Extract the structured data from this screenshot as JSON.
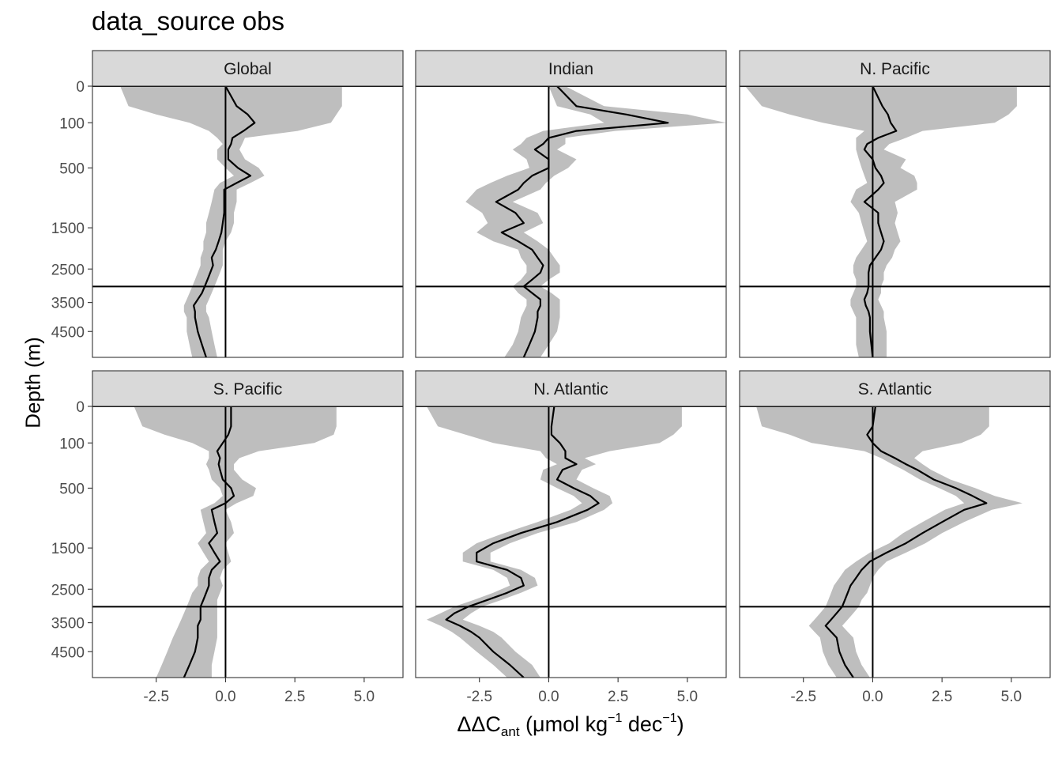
{
  "title": "data_source obs",
  "axis": {
    "ylabel": "Depth (m)",
    "xlabel_delta": "ΔΔC",
    "xlabel_sub": "ant",
    "xlabel_unit_pre": " (μmol kg",
    "xlabel_sup1": "−1",
    "xlabel_unit_mid": " dec",
    "xlabel_sup2": "−1",
    "xlabel_unit_post": ")"
  },
  "chart_data": {
    "type": "line",
    "facets": [
      "Global",
      "Indian",
      "N. Pacific",
      "S. Pacific",
      "N. Atlantic",
      "S. Atlantic"
    ],
    "x_ticks": [
      -2.5,
      0.0,
      2.5,
      5.0
    ],
    "x_tick_labels": [
      "-2.5",
      "0.0",
      "2.5",
      "5.0"
    ],
    "xlim": [
      -4.8,
      6.4
    ],
    "y_ticks": [
      0,
      100,
      500,
      1500,
      2500,
      3500,
      4500
    ],
    "y_tick_labels": [
      "0",
      "100",
      "500",
      "1500",
      "2500",
      "3500",
      "4500"
    ],
    "y_scale": "reverse_sqrt",
    "ylim": [
      0,
      5500
    ],
    "reference_lines": {
      "vertical_x": 0,
      "horizontal_depth": 3000
    },
    "band_color": "#bebebe",
    "line_color": "#000000",
    "panels": [
      {
        "name": "Global",
        "depth": [
          0,
          30,
          60,
          100,
          150,
          200,
          250,
          300,
          400,
          500,
          600,
          700,
          800,
          1000,
          1200,
          1400,
          1600,
          1800,
          2000,
          2200,
          2400,
          2600,
          2800,
          3000,
          3200,
          3400,
          3600,
          3800,
          4000,
          4500,
          5000,
          5500
        ],
        "mean": [
          0.0,
          0.4,
          0.8,
          1.05,
          0.65,
          0.25,
          0.2,
          0.1,
          0.1,
          0.45,
          0.9,
          0.4,
          -0.05,
          -0.05,
          -0.05,
          -0.1,
          -0.15,
          -0.25,
          -0.35,
          -0.5,
          -0.45,
          -0.55,
          -0.65,
          -0.75,
          -0.85,
          -1.0,
          -1.15,
          -1.1,
          -1.1,
          -1.0,
          -0.85,
          -0.7
        ],
        "band": [
          [
            -3.8,
            4.2
          ],
          [
            -3.5,
            4.2
          ],
          [
            -2.5,
            4.0
          ],
          [
            -1.3,
            3.8
          ],
          [
            -0.6,
            2.6
          ],
          [
            -0.3,
            0.7
          ],
          [
            -0.1,
            0.6
          ],
          [
            -0.3,
            0.5
          ],
          [
            -0.3,
            0.7
          ],
          [
            0.0,
            1.2
          ],
          [
            0.3,
            1.4
          ],
          [
            -0.2,
            0.9
          ],
          [
            -0.4,
            0.4
          ],
          [
            -0.5,
            0.4
          ],
          [
            -0.6,
            0.3
          ],
          [
            -0.7,
            0.3
          ],
          [
            -0.7,
            0.2
          ],
          [
            -0.8,
            0.0
          ],
          [
            -0.8,
            -0.1
          ],
          [
            -0.9,
            -0.1
          ],
          [
            -0.9,
            -0.1
          ],
          [
            -1.0,
            -0.2
          ],
          [
            -1.1,
            -0.3
          ],
          [
            -1.2,
            -0.4
          ],
          [
            -1.3,
            -0.5
          ],
          [
            -1.4,
            -0.6
          ],
          [
            -1.5,
            -0.7
          ],
          [
            -1.5,
            -0.7
          ],
          [
            -1.4,
            -0.6
          ],
          [
            -1.4,
            -0.5
          ],
          [
            -1.3,
            -0.4
          ],
          [
            -1.2,
            -0.3
          ]
        ]
      },
      {
        "name": "Indian",
        "depth": [
          0,
          30,
          60,
          100,
          150,
          200,
          250,
          300,
          400,
          500,
          600,
          700,
          800,
          1000,
          1200,
          1400,
          1600,
          1800,
          2000,
          2200,
          2400,
          2600,
          2800,
          3000,
          3200,
          3400,
          3600,
          3800,
          4000,
          4500,
          5000,
          5500
        ],
        "mean": [
          0.3,
          1.0,
          2.8,
          4.3,
          1.0,
          0.0,
          -0.2,
          -0.5,
          0.0,
          0.0,
          -0.6,
          -0.9,
          -1.1,
          -1.9,
          -1.2,
          -0.9,
          -1.7,
          -1.1,
          -0.6,
          -0.4,
          -0.2,
          -0.3,
          -0.6,
          -0.9,
          -0.6,
          -0.3,
          -0.3,
          -0.4,
          -0.4,
          -0.5,
          -0.7,
          -0.9
        ],
        "band": [
          [
            0.0,
            0.6
          ],
          [
            0.3,
            2.0
          ],
          [
            1.5,
            5.0
          ],
          [
            2.0,
            6.4
          ],
          [
            -0.2,
            2.4
          ],
          [
            -0.8,
            0.6
          ],
          [
            -1.0,
            0.6
          ],
          [
            -1.3,
            0.3
          ],
          [
            -0.8,
            1.0
          ],
          [
            -0.7,
            0.7
          ],
          [
            -1.5,
            0.2
          ],
          [
            -2.1,
            -0.1
          ],
          [
            -2.6,
            -0.3
          ],
          [
            -3.0,
            -1.3
          ],
          [
            -2.4,
            -0.4
          ],
          [
            -2.2,
            -0.2
          ],
          [
            -2.6,
            -0.9
          ],
          [
            -2.0,
            -0.4
          ],
          [
            -1.1,
            0.0
          ],
          [
            -1.0,
            0.2
          ],
          [
            -0.8,
            0.4
          ],
          [
            -0.8,
            0.4
          ],
          [
            -1.0,
            0.0
          ],
          [
            -1.3,
            -0.3
          ],
          [
            -1.1,
            0.1
          ],
          [
            -0.8,
            0.4
          ],
          [
            -0.8,
            0.4
          ],
          [
            -0.9,
            0.4
          ],
          [
            -1.0,
            0.4
          ],
          [
            -1.1,
            0.3
          ],
          [
            -1.3,
            0.0
          ],
          [
            -1.6,
            -0.3
          ]
        ]
      },
      {
        "name": "N. Pacific",
        "depth": [
          0,
          30,
          60,
          100,
          150,
          200,
          250,
          300,
          400,
          500,
          600,
          700,
          800,
          1000,
          1200,
          1400,
          1600,
          1800,
          2000,
          2200,
          2400,
          2600,
          2800,
          3000,
          3200,
          3400,
          3600,
          3800,
          4000,
          4500,
          5000,
          5500
        ],
        "mean": [
          0.0,
          0.35,
          0.55,
          0.65,
          0.85,
          0.2,
          -0.2,
          -0.3,
          0.0,
          0.1,
          0.3,
          0.4,
          0.2,
          -0.3,
          0.2,
          0.2,
          0.3,
          0.4,
          0.3,
          0.1,
          -0.1,
          -0.15,
          -0.15,
          -0.15,
          -0.2,
          -0.3,
          -0.25,
          -0.15,
          -0.1,
          -0.1,
          -0.05,
          0.0
        ],
        "band": [
          [
            -4.6,
            5.2
          ],
          [
            -4.0,
            5.2
          ],
          [
            -3.0,
            4.9
          ],
          [
            -1.8,
            4.4
          ],
          [
            -0.3,
            1.8
          ],
          [
            -0.6,
            1.2
          ],
          [
            -0.6,
            0.6
          ],
          [
            -0.6,
            0.4
          ],
          [
            -0.5,
            1.2
          ],
          [
            -0.4,
            1.0
          ],
          [
            -0.3,
            1.5
          ],
          [
            -0.2,
            1.6
          ],
          [
            -0.6,
            1.6
          ],
          [
            -0.8,
            0.8
          ],
          [
            -0.5,
            0.9
          ],
          [
            -0.4,
            0.8
          ],
          [
            -0.3,
            0.9
          ],
          [
            -0.2,
            1.0
          ],
          [
            -0.4,
            0.8
          ],
          [
            -0.6,
            0.7
          ],
          [
            -0.7,
            0.5
          ],
          [
            -0.7,
            0.4
          ],
          [
            -0.6,
            0.4
          ],
          [
            -0.6,
            0.3
          ],
          [
            -0.7,
            0.3
          ],
          [
            -0.8,
            0.2
          ],
          [
            -0.8,
            0.3
          ],
          [
            -0.7,
            0.4
          ],
          [
            -0.6,
            0.4
          ],
          [
            -0.6,
            0.5
          ],
          [
            -0.6,
            0.5
          ],
          [
            -0.5,
            0.5
          ]
        ]
      },
      {
        "name": "S. Pacific",
        "depth": [
          0,
          30,
          60,
          100,
          150,
          200,
          250,
          300,
          400,
          500,
          600,
          700,
          800,
          1000,
          1200,
          1400,
          1600,
          1800,
          2000,
          2200,
          2400,
          2600,
          2800,
          3000,
          3200,
          3400,
          3600,
          3800,
          4000,
          4500,
          5000,
          5500
        ],
        "mean": [
          0.2,
          0.2,
          0.1,
          -0.1,
          -0.3,
          -0.2,
          -0.25,
          -0.2,
          -0.1,
          0.2,
          0.3,
          0.0,
          -0.5,
          -0.4,
          -0.3,
          -0.6,
          -0.4,
          -0.2,
          -0.5,
          -0.6,
          -0.6,
          -0.7,
          -0.8,
          -0.9,
          -0.9,
          -0.9,
          -1.0,
          -1.0,
          -1.0,
          -1.1,
          -1.3,
          -1.5
        ],
        "band": [
          [
            -3.3,
            4.0
          ],
          [
            -3.0,
            4.0
          ],
          [
            -2.2,
            3.9
          ],
          [
            -1.2,
            3.2
          ],
          [
            -0.6,
            1.2
          ],
          [
            -0.6,
            0.5
          ],
          [
            -0.7,
            0.3
          ],
          [
            -0.6,
            0.3
          ],
          [
            -0.5,
            0.6
          ],
          [
            -0.2,
            1.1
          ],
          [
            -0.1,
            1.0
          ],
          [
            -0.4,
            0.4
          ],
          [
            -0.9,
            0.0
          ],
          [
            -0.8,
            0.2
          ],
          [
            -0.7,
            0.3
          ],
          [
            -1.0,
            0.0
          ],
          [
            -0.8,
            0.1
          ],
          [
            -0.6,
            0.2
          ],
          [
            -0.9,
            -0.1
          ],
          [
            -1.0,
            -0.2
          ],
          [
            -1.0,
            -0.1
          ],
          [
            -1.2,
            -0.2
          ],
          [
            -1.3,
            -0.3
          ],
          [
            -1.4,
            -0.3
          ],
          [
            -1.5,
            -0.3
          ],
          [
            -1.6,
            -0.3
          ],
          [
            -1.7,
            -0.3
          ],
          [
            -1.8,
            -0.3
          ],
          [
            -1.9,
            -0.3
          ],
          [
            -2.1,
            -0.4
          ],
          [
            -2.3,
            -0.5
          ],
          [
            -2.5,
            -0.5
          ]
        ]
      },
      {
        "name": "N. Atlantic",
        "depth": [
          0,
          30,
          60,
          100,
          150,
          200,
          250,
          300,
          400,
          500,
          600,
          700,
          800,
          1000,
          1200,
          1400,
          1600,
          1800,
          2000,
          2200,
          2400,
          2600,
          2800,
          3000,
          3200,
          3400,
          3600,
          3800,
          4000,
          4500,
          5000,
          5500
        ],
        "mean": [
          0.2,
          0.1,
          0.1,
          0.4,
          0.6,
          0.6,
          1.0,
          0.5,
          0.3,
          0.9,
          1.5,
          1.8,
          1.4,
          0.3,
          -1.0,
          -2.0,
          -2.6,
          -2.6,
          -1.5,
          -1.0,
          -0.9,
          -1.5,
          -2.2,
          -2.9,
          -3.4,
          -3.7,
          -3.2,
          -2.8,
          -2.5,
          -2.0,
          -1.4,
          -0.9
        ],
        "band": [
          [
            -4.4,
            4.8
          ],
          [
            -4.0,
            4.8
          ],
          [
            -3.0,
            4.5
          ],
          [
            -2.0,
            4.0
          ],
          [
            -0.3,
            2.2
          ],
          [
            -0.1,
            1.3
          ],
          [
            0.3,
            1.7
          ],
          [
            -0.2,
            1.2
          ],
          [
            -0.3,
            1.0
          ],
          [
            0.3,
            1.6
          ],
          [
            0.9,
            2.2
          ],
          [
            1.2,
            2.3
          ],
          [
            0.8,
            2.0
          ],
          [
            -0.4,
            1.0
          ],
          [
            -1.6,
            -0.4
          ],
          [
            -2.6,
            -1.4
          ],
          [
            -3.1,
            -2.1
          ],
          [
            -3.1,
            -2.1
          ],
          [
            -2.0,
            -1.0
          ],
          [
            -1.5,
            -0.5
          ],
          [
            -1.4,
            -0.4
          ],
          [
            -2.0,
            -1.0
          ],
          [
            -2.7,
            -1.7
          ],
          [
            -3.4,
            -2.4
          ],
          [
            -3.9,
            -2.8
          ],
          [
            -4.4,
            -3.1
          ],
          [
            -3.9,
            -2.5
          ],
          [
            -3.5,
            -2.0
          ],
          [
            -3.2,
            -1.7
          ],
          [
            -2.6,
            -1.2
          ],
          [
            -2.0,
            -0.6
          ],
          [
            -1.5,
            -0.3
          ]
        ]
      },
      {
        "name": "S. Atlantic",
        "depth": [
          0,
          30,
          60,
          100,
          150,
          200,
          250,
          300,
          400,
          500,
          600,
          700,
          800,
          1000,
          1200,
          1400,
          1600,
          1800,
          2000,
          2200,
          2400,
          2600,
          2800,
          3000,
          3200,
          3400,
          3600,
          3800,
          4000,
          4500,
          5000,
          5500
        ],
        "mean": [
          0.1,
          0.0,
          -0.2,
          0.0,
          0.3,
          0.8,
          1.2,
          1.6,
          2.2,
          3.0,
          3.6,
          4.1,
          3.3,
          2.5,
          1.8,
          1.2,
          0.5,
          -0.1,
          -0.4,
          -0.6,
          -0.8,
          -0.9,
          -1.0,
          -1.1,
          -1.3,
          -1.5,
          -1.7,
          -1.5,
          -1.3,
          -1.2,
          -1.0,
          -0.7
        ],
        "band": [
          [
            -4.2,
            4.2
          ],
          [
            -4.0,
            4.2
          ],
          [
            -3.0,
            3.9
          ],
          [
            -2.2,
            3.2
          ],
          [
            -0.3,
            1.8
          ],
          [
            0.3,
            1.5
          ],
          [
            0.7,
            1.8
          ],
          [
            1.1,
            2.1
          ],
          [
            1.7,
            2.8
          ],
          [
            2.4,
            3.7
          ],
          [
            3.0,
            4.4
          ],
          [
            3.3,
            5.4
          ],
          [
            2.6,
            4.3
          ],
          [
            1.8,
            3.3
          ],
          [
            1.1,
            2.5
          ],
          [
            0.6,
            1.9
          ],
          [
            -0.1,
            1.2
          ],
          [
            -0.6,
            0.5
          ],
          [
            -1.0,
            0.2
          ],
          [
            -1.2,
            0.0
          ],
          [
            -1.4,
            -0.1
          ],
          [
            -1.5,
            -0.2
          ],
          [
            -1.6,
            -0.4
          ],
          [
            -1.7,
            -0.5
          ],
          [
            -1.9,
            -0.7
          ],
          [
            -2.1,
            -0.9
          ],
          [
            -2.3,
            -1.1
          ],
          [
            -2.1,
            -0.9
          ],
          [
            -1.9,
            -0.7
          ],
          [
            -1.8,
            -0.6
          ],
          [
            -1.6,
            -0.4
          ],
          [
            -1.3,
            -0.1
          ]
        ]
      }
    ]
  }
}
